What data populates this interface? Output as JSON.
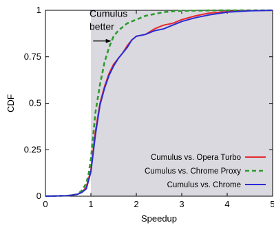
{
  "chart_data": {
    "type": "line",
    "title": "",
    "xlabel": "Speedup",
    "ylabel": "CDF",
    "xlim": [
      0,
      5
    ],
    "ylim": [
      0,
      1
    ],
    "x_ticks": [
      "0",
      "1",
      "2",
      "3",
      "4",
      "5"
    ],
    "y_ticks": [
      "0",
      "0.25",
      "0.5",
      "0.75",
      "1"
    ],
    "grid": false,
    "legend_position": "bottom-right",
    "shaded_region": {
      "x_from": 1,
      "x_to": 5,
      "color": "#d9d9df"
    },
    "annotation": {
      "line1": "Cumulus",
      "line2": "better",
      "arrow_from_x": 1.05,
      "arrow_to_x": 1.45,
      "y": 0.835
    },
    "series": [
      {
        "name": "Cumulus vs. Opera Turbo",
        "color": "#e8282a",
        "dash": "solid",
        "x": [
          0,
          0.5,
          0.7,
          0.8,
          0.9,
          1.0,
          1.1,
          1.2,
          1.3,
          1.4,
          1.5,
          1.6,
          1.7,
          1.8,
          1.9,
          2.0,
          2.2,
          2.4,
          2.6,
          2.8,
          3.0,
          3.3,
          3.6,
          4.0,
          4.5,
          5.0
        ],
        "y": [
          0,
          0.003,
          0.01,
          0.02,
          0.05,
          0.14,
          0.35,
          0.5,
          0.59,
          0.66,
          0.71,
          0.74,
          0.77,
          0.81,
          0.84,
          0.86,
          0.87,
          0.9,
          0.92,
          0.93,
          0.95,
          0.97,
          0.985,
          0.993,
          0.998,
          1.0
        ]
      },
      {
        "name": "Cumulus vs. Chrome Proxy",
        "color": "#2d9a2d",
        "dash": "dashed",
        "x": [
          0,
          0.5,
          0.7,
          0.8,
          0.9,
          0.95,
          1.0,
          1.1,
          1.2,
          1.3,
          1.4,
          1.5,
          1.6,
          1.7,
          1.8,
          2.0,
          2.2,
          2.4,
          2.6,
          2.8,
          3.0,
          3.5,
          4.0,
          4.5,
          5.0
        ],
        "y": [
          0,
          0.003,
          0.01,
          0.03,
          0.07,
          0.12,
          0.2,
          0.45,
          0.6,
          0.72,
          0.8,
          0.86,
          0.89,
          0.91,
          0.93,
          0.95,
          0.97,
          0.98,
          0.99,
          0.995,
          0.997,
          0.999,
          1.0,
          1.0,
          1.0
        ]
      },
      {
        "name": "Cumulus vs. Chrome",
        "color": "#2b2bd6",
        "dash": "solid",
        "x": [
          0,
          0.5,
          0.7,
          0.8,
          0.9,
          1.0,
          1.1,
          1.2,
          1.3,
          1.4,
          1.5,
          1.6,
          1.7,
          1.8,
          1.9,
          2.0,
          2.2,
          2.4,
          2.6,
          2.8,
          3.0,
          3.3,
          3.6,
          4.0,
          4.5,
          5.0
        ],
        "y": [
          0,
          0.003,
          0.01,
          0.02,
          0.04,
          0.13,
          0.33,
          0.49,
          0.58,
          0.65,
          0.7,
          0.74,
          0.77,
          0.8,
          0.84,
          0.86,
          0.87,
          0.89,
          0.9,
          0.92,
          0.94,
          0.96,
          0.975,
          0.99,
          0.997,
          1.0
        ]
      }
    ]
  }
}
